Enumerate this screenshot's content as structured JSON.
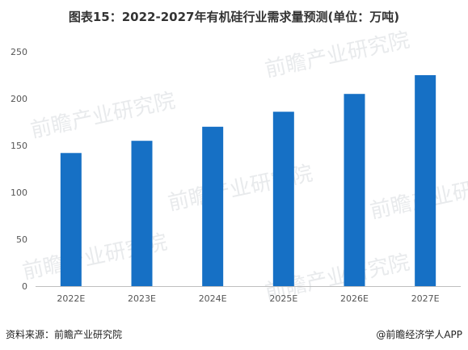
{
  "title": "图表15：2022-2027年有机硅行业需求量预测(单位：万吨)",
  "footer": {
    "source": "资料来源：前瞻产业研究院",
    "brand": "@前瞻经济学人APP"
  },
  "watermark_text": "前瞻产业研究院",
  "colors": {
    "bar": "#1670c5",
    "axis": "#bfbfbf",
    "tick_text": "#555555"
  },
  "chart_data": {
    "type": "bar",
    "title": "图表15：2022-2027年有机硅行业需求量预测(单位：万吨)",
    "categories": [
      "2022E",
      "2023E",
      "2024E",
      "2025E",
      "2026E",
      "2027E"
    ],
    "values": [
      142,
      155,
      170,
      186,
      205,
      225
    ],
    "ylim": [
      0,
      250
    ],
    "yticks": [
      0,
      50,
      100,
      150,
      200,
      250
    ],
    "xlabel": "",
    "ylabel": "",
    "grid": false,
    "legend": "none"
  }
}
